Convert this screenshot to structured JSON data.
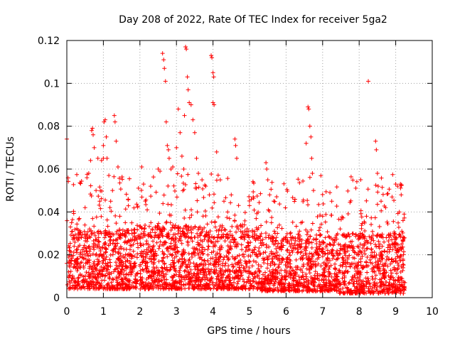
{
  "chart_data": {
    "type": "scatter",
    "title": "Day 208 of 2022, Rate Of TEC Index for receiver 5ga2",
    "xlabel": "GPS time / hours",
    "ylabel": "ROTI / TECUs",
    "xlim": [
      0,
      10
    ],
    "ylim": [
      0,
      0.12
    ],
    "x_ticks": [
      0,
      1,
      2,
      3,
      4,
      5,
      6,
      7,
      8,
      9,
      10
    ],
    "y_ticks": [
      0,
      0.02,
      0.04,
      0.06,
      0.08,
      0.1,
      0.12
    ],
    "x_tick_labels": [
      "0",
      "1",
      "2",
      "3",
      "4",
      "5",
      "6",
      "7",
      "8",
      "9",
      "10"
    ],
    "y_tick_labels": [
      "0",
      "0.02",
      "0.04",
      "0.06",
      "0.08",
      "0.1",
      "0.12"
    ],
    "grid": true,
    "marker": "+",
    "marker_color": "#ff0000",
    "x_data_extent": [
      0.0,
      9.25
    ],
    "points": [
      [
        0.0,
        0.074
      ],
      [
        0.0,
        0.016
      ],
      [
        0.02,
        0.006
      ],
      [
        0.05,
        0.012
      ],
      [
        0.1,
        0.033
      ],
      [
        0.15,
        0.031
      ],
      [
        0.2,
        0.024
      ],
      [
        0.3,
        0.018
      ],
      [
        0.4,
        0.028
      ],
      [
        0.5,
        0.042
      ],
      [
        0.55,
        0.056
      ],
      [
        0.6,
        0.058
      ],
      [
        0.65,
        0.064
      ],
      [
        0.68,
        0.078
      ],
      [
        0.7,
        0.079
      ],
      [
        0.72,
        0.076
      ],
      [
        0.75,
        0.07
      ],
      [
        0.8,
        0.05
      ],
      [
        0.85,
        0.065
      ],
      [
        0.9,
        0.045
      ],
      [
        0.95,
        0.064
      ],
      [
        1.0,
        0.071
      ],
      [
        1.0,
        0.065
      ],
      [
        1.02,
        0.082
      ],
      [
        1.05,
        0.083
      ],
      [
        1.08,
        0.075
      ],
      [
        1.1,
        0.065
      ],
      [
        1.15,
        0.057
      ],
      [
        1.2,
        0.045
      ],
      [
        1.25,
        0.05
      ],
      [
        1.3,
        0.085
      ],
      [
        1.32,
        0.082
      ],
      [
        1.35,
        0.073
      ],
      [
        1.4,
        0.061
      ],
      [
        1.45,
        0.038
      ],
      [
        1.6,
        0.035
      ],
      [
        1.7,
        0.03
      ],
      [
        1.85,
        0.03
      ],
      [
        2.05,
        0.061
      ],
      [
        2.1,
        0.053
      ],
      [
        2.2,
        0.041
      ],
      [
        2.3,
        0.035
      ],
      [
        2.5,
        0.06
      ],
      [
        2.55,
        0.059
      ],
      [
        2.62,
        0.114
      ],
      [
        2.65,
        0.111
      ],
      [
        2.67,
        0.107
      ],
      [
        2.7,
        0.101
      ],
      [
        2.72,
        0.082
      ],
      [
        2.75,
        0.071
      ],
      [
        2.78,
        0.069
      ],
      [
        2.8,
        0.065
      ],
      [
        2.85,
        0.06
      ],
      [
        2.9,
        0.061
      ],
      [
        3.0,
        0.07
      ],
      [
        3.05,
        0.088
      ],
      [
        3.1,
        0.077
      ],
      [
        3.15,
        0.066
      ],
      [
        3.2,
        0.06
      ],
      [
        3.22,
        0.085
      ],
      [
        3.25,
        0.117
      ],
      [
        3.27,
        0.116
      ],
      [
        3.3,
        0.103
      ],
      [
        3.32,
        0.097
      ],
      [
        3.35,
        0.091
      ],
      [
        3.4,
        0.09
      ],
      [
        3.45,
        0.083
      ],
      [
        3.5,
        0.077
      ],
      [
        3.55,
        0.065
      ],
      [
        3.6,
        0.058
      ],
      [
        3.7,
        0.055
      ],
      [
        3.8,
        0.052
      ],
      [
        3.9,
        0.048
      ],
      [
        3.95,
        0.113
      ],
      [
        3.97,
        0.112
      ],
      [
        4.0,
        0.105
      ],
      [
        4.02,
        0.103
      ],
      [
        4.0,
        0.091
      ],
      [
        4.03,
        0.09
      ],
      [
        4.1,
        0.068
      ],
      [
        4.2,
        0.055
      ],
      [
        4.3,
        0.045
      ],
      [
        4.4,
        0.04
      ],
      [
        4.5,
        0.048
      ],
      [
        4.6,
        0.074
      ],
      [
        4.62,
        0.071
      ],
      [
        4.65,
        0.065
      ],
      [
        4.7,
        0.043
      ],
      [
        4.8,
        0.033
      ],
      [
        5.45,
        0.063
      ],
      [
        5.47,
        0.06
      ],
      [
        5.5,
        0.055
      ],
      [
        5.55,
        0.048
      ],
      [
        5.6,
        0.035
      ],
      [
        5.7,
        0.03
      ],
      [
        6.55,
        0.072
      ],
      [
        6.6,
        0.089
      ],
      [
        6.62,
        0.088
      ],
      [
        6.65,
        0.08
      ],
      [
        6.68,
        0.075
      ],
      [
        6.7,
        0.065
      ],
      [
        6.72,
        0.058
      ],
      [
        6.75,
        0.05
      ],
      [
        7.0,
        0.038
      ],
      [
        7.2,
        0.049
      ],
      [
        7.25,
        0.045
      ],
      [
        8.2,
        0.038
      ],
      [
        8.25,
        0.101
      ],
      [
        8.45,
        0.073
      ],
      [
        8.47,
        0.069
      ],
      [
        8.5,
        0.058
      ],
      [
        8.52,
        0.052
      ],
      [
        8.6,
        0.045
      ],
      [
        8.9,
        0.047
      ],
      [
        9.0,
        0.053
      ],
      [
        9.05,
        0.052
      ],
      [
        9.1,
        0.04
      ],
      [
        9.15,
        0.048
      ],
      [
        9.2,
        0.036
      ],
      [
        9.25,
        0.007
      ]
    ],
    "dense_band": {
      "description_note": "bulk of observations",
      "y_range_typical": [
        0.004,
        0.03
      ],
      "segments": [
        {
          "x": [
            0.05,
            1.95
          ],
          "y": [
            0.004,
            0.032
          ]
        },
        {
          "x": [
            2.0,
            5.3
          ],
          "y": [
            0.004,
            0.034
          ]
        },
        {
          "x": [
            5.3,
            7.4
          ],
          "y": [
            0.003,
            0.028
          ]
        },
        {
          "x": [
            7.4,
            9.25
          ],
          "y": [
            0.002,
            0.03
          ]
        }
      ]
    }
  }
}
